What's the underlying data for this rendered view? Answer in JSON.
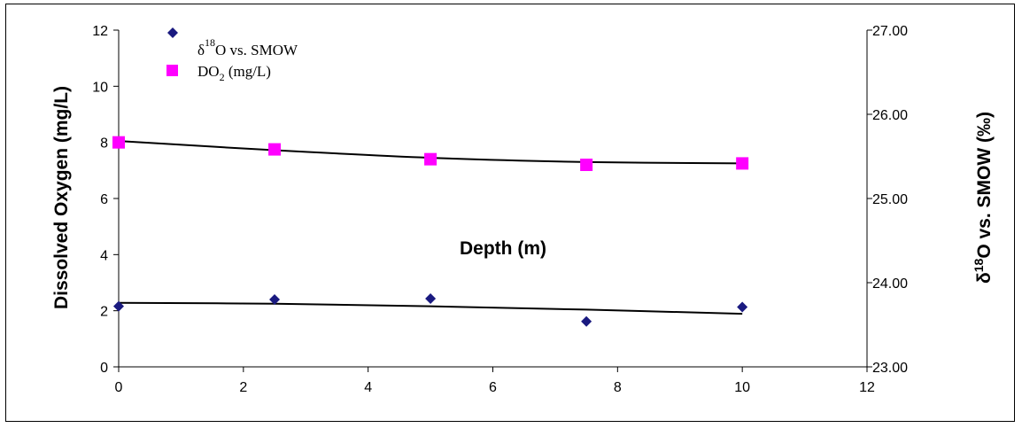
{
  "chart_data": {
    "type": "scatter",
    "x_axis": {
      "label": "Depth (m)",
      "range": [
        0,
        12
      ],
      "ticks": [
        "0",
        "2",
        "4",
        "6",
        "8",
        "10",
        "12"
      ]
    },
    "y_axis_left": {
      "label": "Dissolved Oxygen (mg/L)",
      "range": [
        0,
        12
      ],
      "ticks": [
        "0",
        "2",
        "4",
        "6",
        "8",
        "10",
        "12"
      ]
    },
    "y_axis_right": {
      "label_prefix": "δ",
      "label_sup": "18",
      "label_rest": "O vs. SMOW (‰)",
      "range": [
        23.0,
        27.0
      ],
      "ticks": [
        "23.00",
        "24.00",
        "25.00",
        "26.00",
        "27.00"
      ]
    },
    "legend_placement": "top-left",
    "grid": false,
    "series": [
      {
        "name_prefix": "δ",
        "name_sup": "18",
        "name_rest": "O vs. SMOW",
        "axis": "right",
        "marker": "diamond",
        "color": "#1a1a80",
        "x": [
          0,
          2.5,
          5,
          7.5,
          10
        ],
        "y": [
          23.72,
          23.8,
          23.81,
          23.54,
          23.71
        ],
        "trend": [
          23.76,
          23.75,
          23.72,
          23.68,
          23.63
        ]
      },
      {
        "name_prefix": "DO",
        "name_sub": "2",
        "name_rest": " (mg/L)",
        "axis": "left",
        "marker": "square",
        "color": "#ff00ff",
        "x": [
          0,
          2.5,
          5,
          7.5,
          10
        ],
        "y": [
          8.0,
          7.75,
          7.4,
          7.2,
          7.25
        ],
        "trend": [
          8.05,
          7.72,
          7.45,
          7.3,
          7.25
        ]
      }
    ]
  }
}
